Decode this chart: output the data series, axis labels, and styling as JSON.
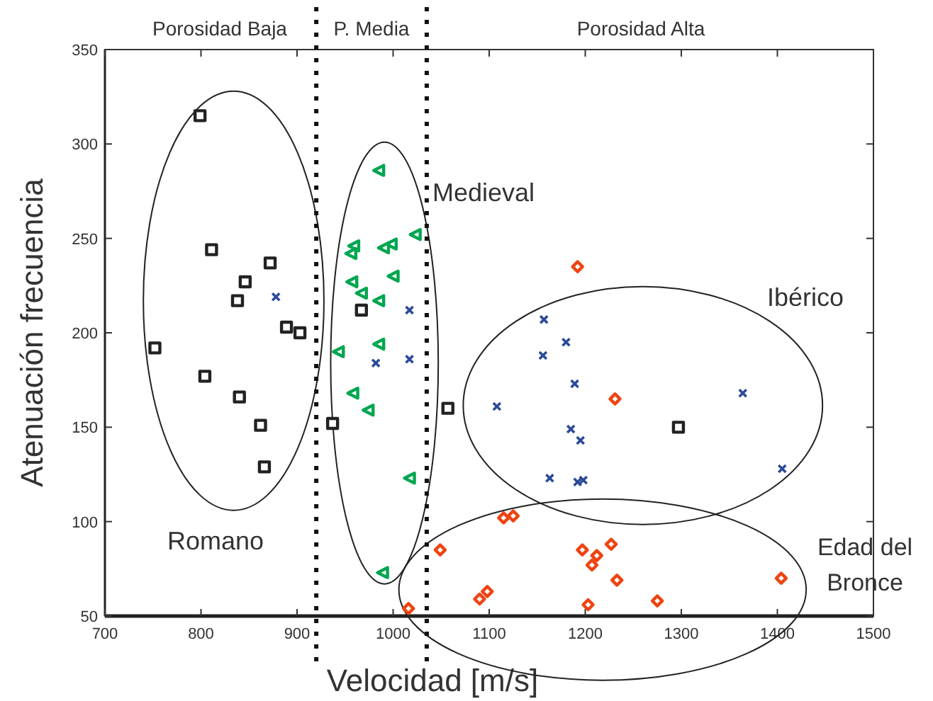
{
  "chart_data": {
    "type": "scatter",
    "xlabel": "Velocidad [m/s]",
    "ylabel": "Atenuación frecuencia",
    "xlim": [
      700,
      1500
    ],
    "xticks": [
      700,
      800,
      900,
      1000,
      1100,
      1200,
      1300,
      1400,
      1500
    ],
    "ylim": [
      50,
      350
    ],
    "yticks": [
      50,
      100,
      150,
      200,
      250,
      300,
      350
    ],
    "grid": false,
    "series": [
      {
        "color": "#222222",
        "marker": "square",
        "x": [
          799,
          811,
          872,
          846,
          838,
          889,
          903,
          967,
          752,
          804,
          840,
          862,
          866,
          937,
          1057,
          1297
        ],
        "values": [
          315,
          244,
          237,
          227,
          217,
          203,
          200,
          212,
          192,
          177,
          166,
          151,
          129,
          152,
          160,
          150
        ]
      },
      {
        "color": "#00a650",
        "marker": "triangle",
        "x": [
          985,
          959,
          956,
          998,
          990,
          1023,
          1000,
          957,
          967,
          985,
          943,
          985,
          958,
          974,
          1017,
          989
        ],
        "values": [
          286,
          246,
          242,
          247,
          245,
          252,
          230,
          227,
          221,
          217,
          190,
          194,
          168,
          159,
          123,
          73
        ]
      },
      {
        "color": "#2b4a9a",
        "marker": "cross",
        "x": [
          878,
          1017,
          982,
          1017,
          1157,
          1180,
          1156,
          1189,
          1108,
          1364,
          1185,
          1195,
          1163,
          1192,
          1198,
          1405
        ],
        "values": [
          219,
          212,
          184,
          186,
          207,
          195,
          188,
          173,
          161,
          168,
          149,
          143,
          123,
          121,
          122,
          128
        ]
      },
      {
        "color": "#ee4411",
        "marker": "diamond",
        "x": [
          1192,
          1231,
          1049,
          1115,
          1125,
          1197,
          1212,
          1207,
          1227,
          1233,
          1404,
          1098,
          1090,
          1203,
          1275,
          1016
        ],
        "values": [
          235,
          165,
          85,
          102,
          103,
          85,
          82,
          77,
          88,
          69,
          70,
          63,
          59,
          56,
          58,
          54
        ]
      }
    ],
    "ref_lines": [
      {
        "axis": "x",
        "value": 920,
        "label": null,
        "line_style": "dotted"
      },
      {
        "axis": "x",
        "value": 1035,
        "label": null,
        "line_style": "dotted"
      }
    ],
    "annotations": [
      "Porosidad Baja",
      "P. Media",
      "Porosidad Alta",
      "Romano",
      "Medieval",
      "Ibérico",
      "Edad del Bronce"
    ]
  }
}
